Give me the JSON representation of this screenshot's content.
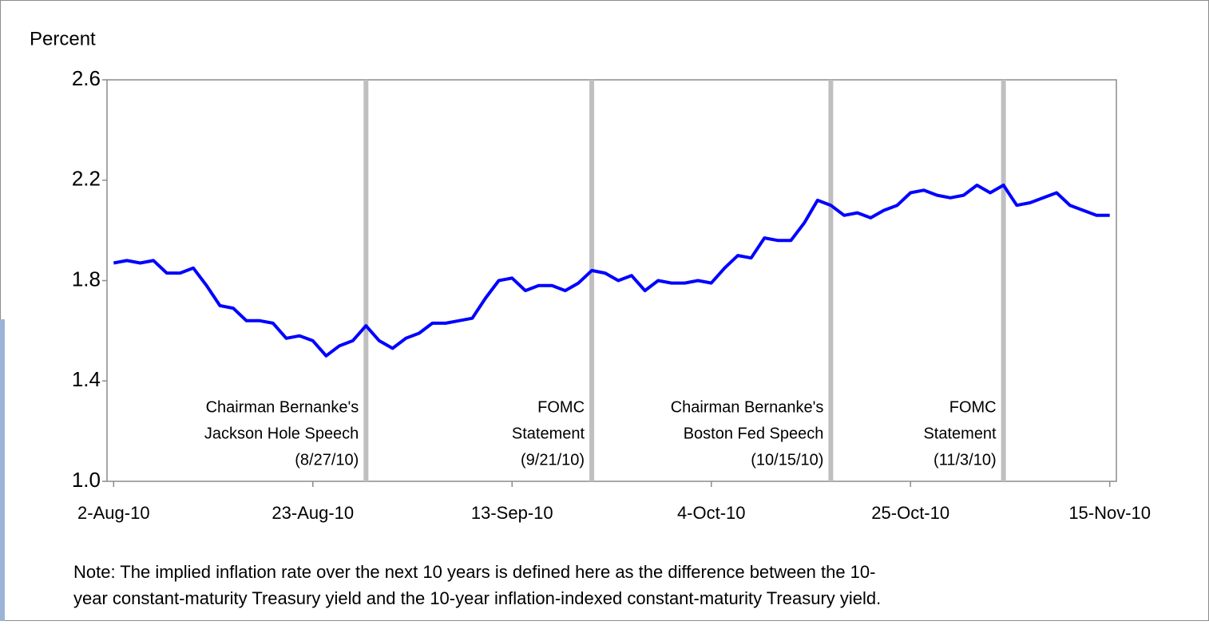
{
  "chart_data": {
    "type": "line",
    "y_label": "Percent",
    "categories": [
      "2-Aug-10",
      null,
      null,
      null,
      null,
      null,
      null,
      null,
      null,
      null,
      null,
      null,
      null,
      null,
      null,
      "23-Aug-10",
      null,
      null,
      null,
      null,
      null,
      null,
      null,
      null,
      null,
      null,
      null,
      null,
      null,
      null,
      "13-Sep-10",
      null,
      null,
      null,
      null,
      null,
      null,
      null,
      null,
      null,
      null,
      null,
      null,
      null,
      null,
      "4-Oct-10",
      null,
      null,
      null,
      null,
      null,
      null,
      null,
      null,
      null,
      null,
      null,
      null,
      null,
      null,
      "25-Oct-10",
      null,
      null,
      null,
      null,
      null,
      null,
      null,
      null,
      null,
      null,
      null,
      null,
      null,
      null,
      "15-Nov-10"
    ],
    "series": [
      {
        "color": "#0000ff",
        "values": [
          1.87,
          1.88,
          1.87,
          1.88,
          1.83,
          1.83,
          1.85,
          1.78,
          1.7,
          1.69,
          1.64,
          1.64,
          1.63,
          1.57,
          1.58,
          1.56,
          1.5,
          1.54,
          1.56,
          1.62,
          1.56,
          1.53,
          1.57,
          1.59,
          1.63,
          1.63,
          1.64,
          1.65,
          1.73,
          1.8,
          1.81,
          1.76,
          1.78,
          1.78,
          1.76,
          1.79,
          1.84,
          1.83,
          1.8,
          1.82,
          1.76,
          1.8,
          1.79,
          1.79,
          1.8,
          1.79,
          1.85,
          1.9,
          1.89,
          1.97,
          1.96,
          1.96,
          2.03,
          2.12,
          2.1,
          2.06,
          2.07,
          2.05,
          2.08,
          2.1,
          2.15,
          2.16,
          2.14,
          2.13,
          2.14,
          2.18,
          2.15,
          2.18,
          2.1,
          2.11,
          2.13,
          2.15,
          2.1,
          2.08,
          2.06,
          2.06
        ]
      }
    ],
    "ylim": [
      1,
      2.6
    ],
    "yticks": [
      {
        "value": 1,
        "label": "1.0"
      },
      1.4,
      1.8,
      2.2,
      2.6
    ],
    "event_color": "#bfbfbf",
    "annotations": [
      {
        "index": 19,
        "text": [
          "Chairman Bernanke's",
          "Jackson Hole Speech",
          "(8/27/10)"
        ]
      },
      {
        "index": 36,
        "text": [
          "FOMC",
          "Statement",
          "(9/21/10)"
        ]
      },
      {
        "index": 54,
        "text": [
          "Chairman Bernanke's",
          "Boston Fed Speech",
          "(10/15/10)"
        ]
      },
      {
        "index": 67,
        "text": [
          "FOMC",
          "Statement",
          "(11/3/10)"
        ]
      }
    ],
    "note": [
      "Note:  The implied inflation rate over the next 10 years is defined here as the difference between the 10-",
      "year constant-maturity Treasury yield and the 10-year inflation-indexed constant-maturity Treasury yield."
    ]
  }
}
